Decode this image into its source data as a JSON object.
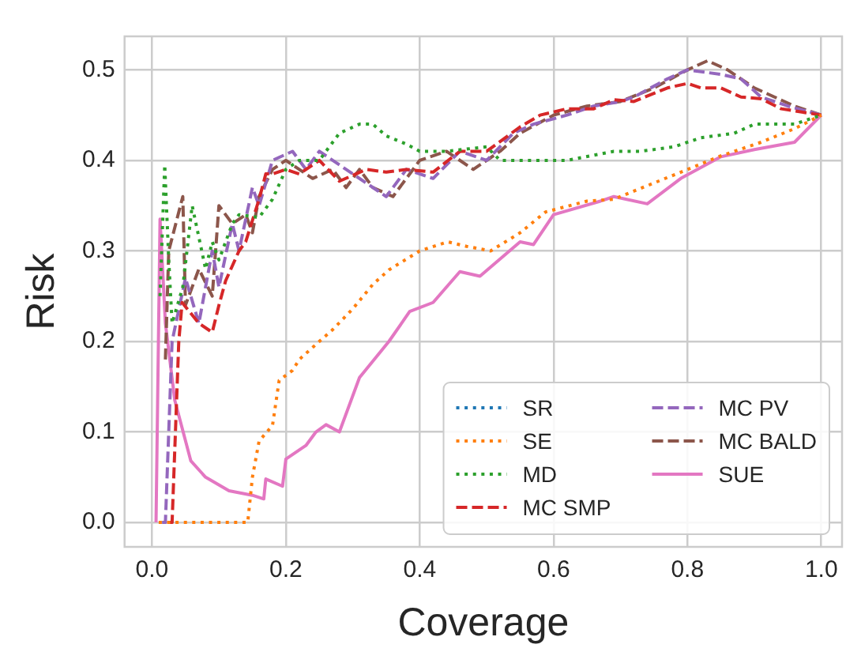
{
  "chart_data": {
    "type": "line",
    "xlabel": "Coverage",
    "ylabel": "Risk",
    "xlim": [
      -0.041,
      1.031
    ],
    "ylim": [
      -0.027,
      0.537
    ],
    "xticks": [
      {
        "value": 0,
        "label": "0.0"
      },
      {
        "value": 0.2,
        "label": "0.2"
      },
      {
        "value": 0.4,
        "label": "0.4"
      },
      {
        "value": 0.6,
        "label": "0.6"
      },
      {
        "value": 0.8,
        "label": "0.8"
      },
      {
        "value": 1,
        "label": "1.0"
      }
    ],
    "yticks": [
      {
        "value": 0,
        "label": "0.0"
      },
      {
        "value": 0.1,
        "label": "0.1"
      },
      {
        "value": 0.2,
        "label": "0.2"
      },
      {
        "value": 0.3,
        "label": "0.3"
      },
      {
        "value": 0.4,
        "label": "0.4"
      },
      {
        "value": 0.5,
        "label": "0.5"
      }
    ],
    "grid": true,
    "legend": "bottom right",
    "marker": "none",
    "series": [
      {
        "name": "SR",
        "color": "#1f77b4",
        "line_style": "dotted"
      },
      {
        "name": "SE",
        "color": "#ff7f0e",
        "line_style": "dotted",
        "x": [
          0.01,
          0.143,
          0.15,
          0.16,
          0.18,
          0.19,
          0.21,
          0.22,
          0.25,
          0.27,
          0.3,
          0.33,
          0.354,
          0.4,
          0.442,
          0.47,
          0.506,
          0.55,
          0.588,
          0.65,
          0.69,
          0.75,
          0.8,
          0.85,
          0.91,
          0.96,
          1.0
        ],
        "values": [
          0,
          0,
          0.05,
          0.09,
          0.107,
          0.157,
          0.168,
          0.18,
          0.2,
          0.213,
          0.236,
          0.263,
          0.279,
          0.3,
          0.31,
          0.305,
          0.3,
          0.32,
          0.343,
          0.355,
          0.357,
          0.375,
          0.39,
          0.405,
          0.42,
          0.435,
          0.45
        ]
      },
      {
        "name": "MD",
        "color": "#2ca02c",
        "line_style": "dotted",
        "x": [
          0.012,
          0.019,
          0.025,
          0.03,
          0.046,
          0.06,
          0.08,
          0.09,
          0.1,
          0.12,
          0.13,
          0.16,
          0.18,
          0.2,
          0.22,
          0.25,
          0.28,
          0.31,
          0.33,
          0.35,
          0.38,
          0.4,
          0.44,
          0.5,
          0.52,
          0.58,
          0.62,
          0.69,
          0.73,
          0.78,
          0.82,
          0.87,
          0.9,
          0.96,
          1.0
        ],
        "values": [
          0.25,
          0.395,
          0.29,
          0.22,
          0.26,
          0.35,
          0.28,
          0.31,
          0.29,
          0.33,
          0.34,
          0.337,
          0.357,
          0.39,
          0.4,
          0.4,
          0.43,
          0.44,
          0.44,
          0.427,
          0.418,
          0.41,
          0.41,
          0.415,
          0.4,
          0.4,
          0.4,
          0.41,
          0.41,
          0.415,
          0.425,
          0.43,
          0.44,
          0.44,
          0.45
        ]
      },
      {
        "name": "MC SMP",
        "color": "#d62728",
        "line_style": "dashed",
        "x": [
          0.025,
          0.03,
          0.04,
          0.045,
          0.07,
          0.09,
          0.1,
          0.11,
          0.13,
          0.14,
          0.16,
          0.17,
          0.18,
          0.2,
          0.22,
          0.25,
          0.28,
          0.32,
          0.35,
          0.38,
          0.42,
          0.46,
          0.5,
          0.55,
          0.58,
          0.62,
          0.66,
          0.69,
          0.72,
          0.77,
          0.8,
          0.82,
          0.85,
          0.88,
          0.91,
          0.94,
          1.0
        ],
        "values": [
          0,
          0,
          0.2,
          0.243,
          0.22,
          0.21,
          0.24,
          0.267,
          0.3,
          0.31,
          0.357,
          0.385,
          0.385,
          0.39,
          0.385,
          0.4,
          0.377,
          0.39,
          0.387,
          0.39,
          0.387,
          0.41,
          0.41,
          0.437,
          0.45,
          0.457,
          0.457,
          0.467,
          0.465,
          0.48,
          0.485,
          0.48,
          0.48,
          0.47,
          0.468,
          0.457,
          0.45
        ]
      },
      {
        "name": "MC PV",
        "color": "#9467bd",
        "line_style": "dashed",
        "x": [
          0.015,
          0.02,
          0.03,
          0.05,
          0.07,
          0.09,
          0.1,
          0.12,
          0.13,
          0.15,
          0.16,
          0.18,
          0.21,
          0.23,
          0.25,
          0.29,
          0.33,
          0.35,
          0.38,
          0.42,
          0.46,
          0.5,
          0.54,
          0.57,
          0.62,
          0.66,
          0.7,
          0.72,
          0.77,
          0.8,
          0.85,
          0.88,
          0.91,
          0.95,
          1.0
        ],
        "values": [
          0,
          0,
          0.2,
          0.27,
          0.22,
          0.3,
          0.26,
          0.33,
          0.3,
          0.37,
          0.35,
          0.4,
          0.41,
          0.39,
          0.41,
          0.39,
          0.37,
          0.36,
          0.39,
          0.38,
          0.41,
          0.4,
          0.43,
          0.44,
          0.45,
          0.46,
          0.465,
          0.47,
          0.49,
          0.5,
          0.495,
          0.49,
          0.47,
          0.46,
          0.45
        ]
      },
      {
        "name": "MC BALD",
        "color": "#8c564b",
        "line_style": "dashed",
        "x": [
          0.02,
          0.025,
          0.046,
          0.05,
          0.07,
          0.09,
          0.1,
          0.12,
          0.14,
          0.15,
          0.16,
          0.18,
          0.2,
          0.24,
          0.27,
          0.29,
          0.31,
          0.33,
          0.36,
          0.4,
          0.44,
          0.48,
          0.52,
          0.55,
          0.6,
          0.65,
          0.7,
          0.75,
          0.8,
          0.83,
          0.86,
          0.9,
          0.93,
          0.96,
          1.0
        ],
        "values": [
          0.18,
          0.3,
          0.36,
          0.24,
          0.28,
          0.25,
          0.35,
          0.33,
          0.34,
          0.32,
          0.36,
          0.39,
          0.4,
          0.38,
          0.39,
          0.37,
          0.39,
          0.37,
          0.36,
          0.4,
          0.41,
          0.39,
          0.41,
          0.43,
          0.45,
          0.46,
          0.465,
          0.48,
          0.5,
          0.51,
          0.5,
          0.48,
          0.47,
          0.46,
          0.45
        ]
      },
      {
        "name": "SUE",
        "color": "#e377c2",
        "line_style": "solid",
        "x": [
          0.006,
          0.012,
          0.02,
          0.034,
          0.058,
          0.08,
          0.115,
          0.15,
          0.167,
          0.17,
          0.195,
          0.2,
          0.22,
          0.23,
          0.245,
          0.26,
          0.28,
          0.31,
          0.354,
          0.385,
          0.42,
          0.46,
          0.49,
          0.55,
          0.57,
          0.6,
          0.67,
          0.69,
          0.74,
          0.79,
          0.85,
          0.9,
          0.96,
          1.0
        ],
        "values": [
          0,
          0.335,
          0.22,
          0.135,
          0.068,
          0.05,
          0.035,
          0.03,
          0.026,
          0.048,
          0.04,
          0.07,
          0.08,
          0.085,
          0.1,
          0.108,
          0.1,
          0.16,
          0.2,
          0.233,
          0.243,
          0.277,
          0.272,
          0.31,
          0.307,
          0.34,
          0.355,
          0.36,
          0.352,
          0.38,
          0.404,
          0.412,
          0.42,
          0.45
        ]
      }
    ]
  }
}
